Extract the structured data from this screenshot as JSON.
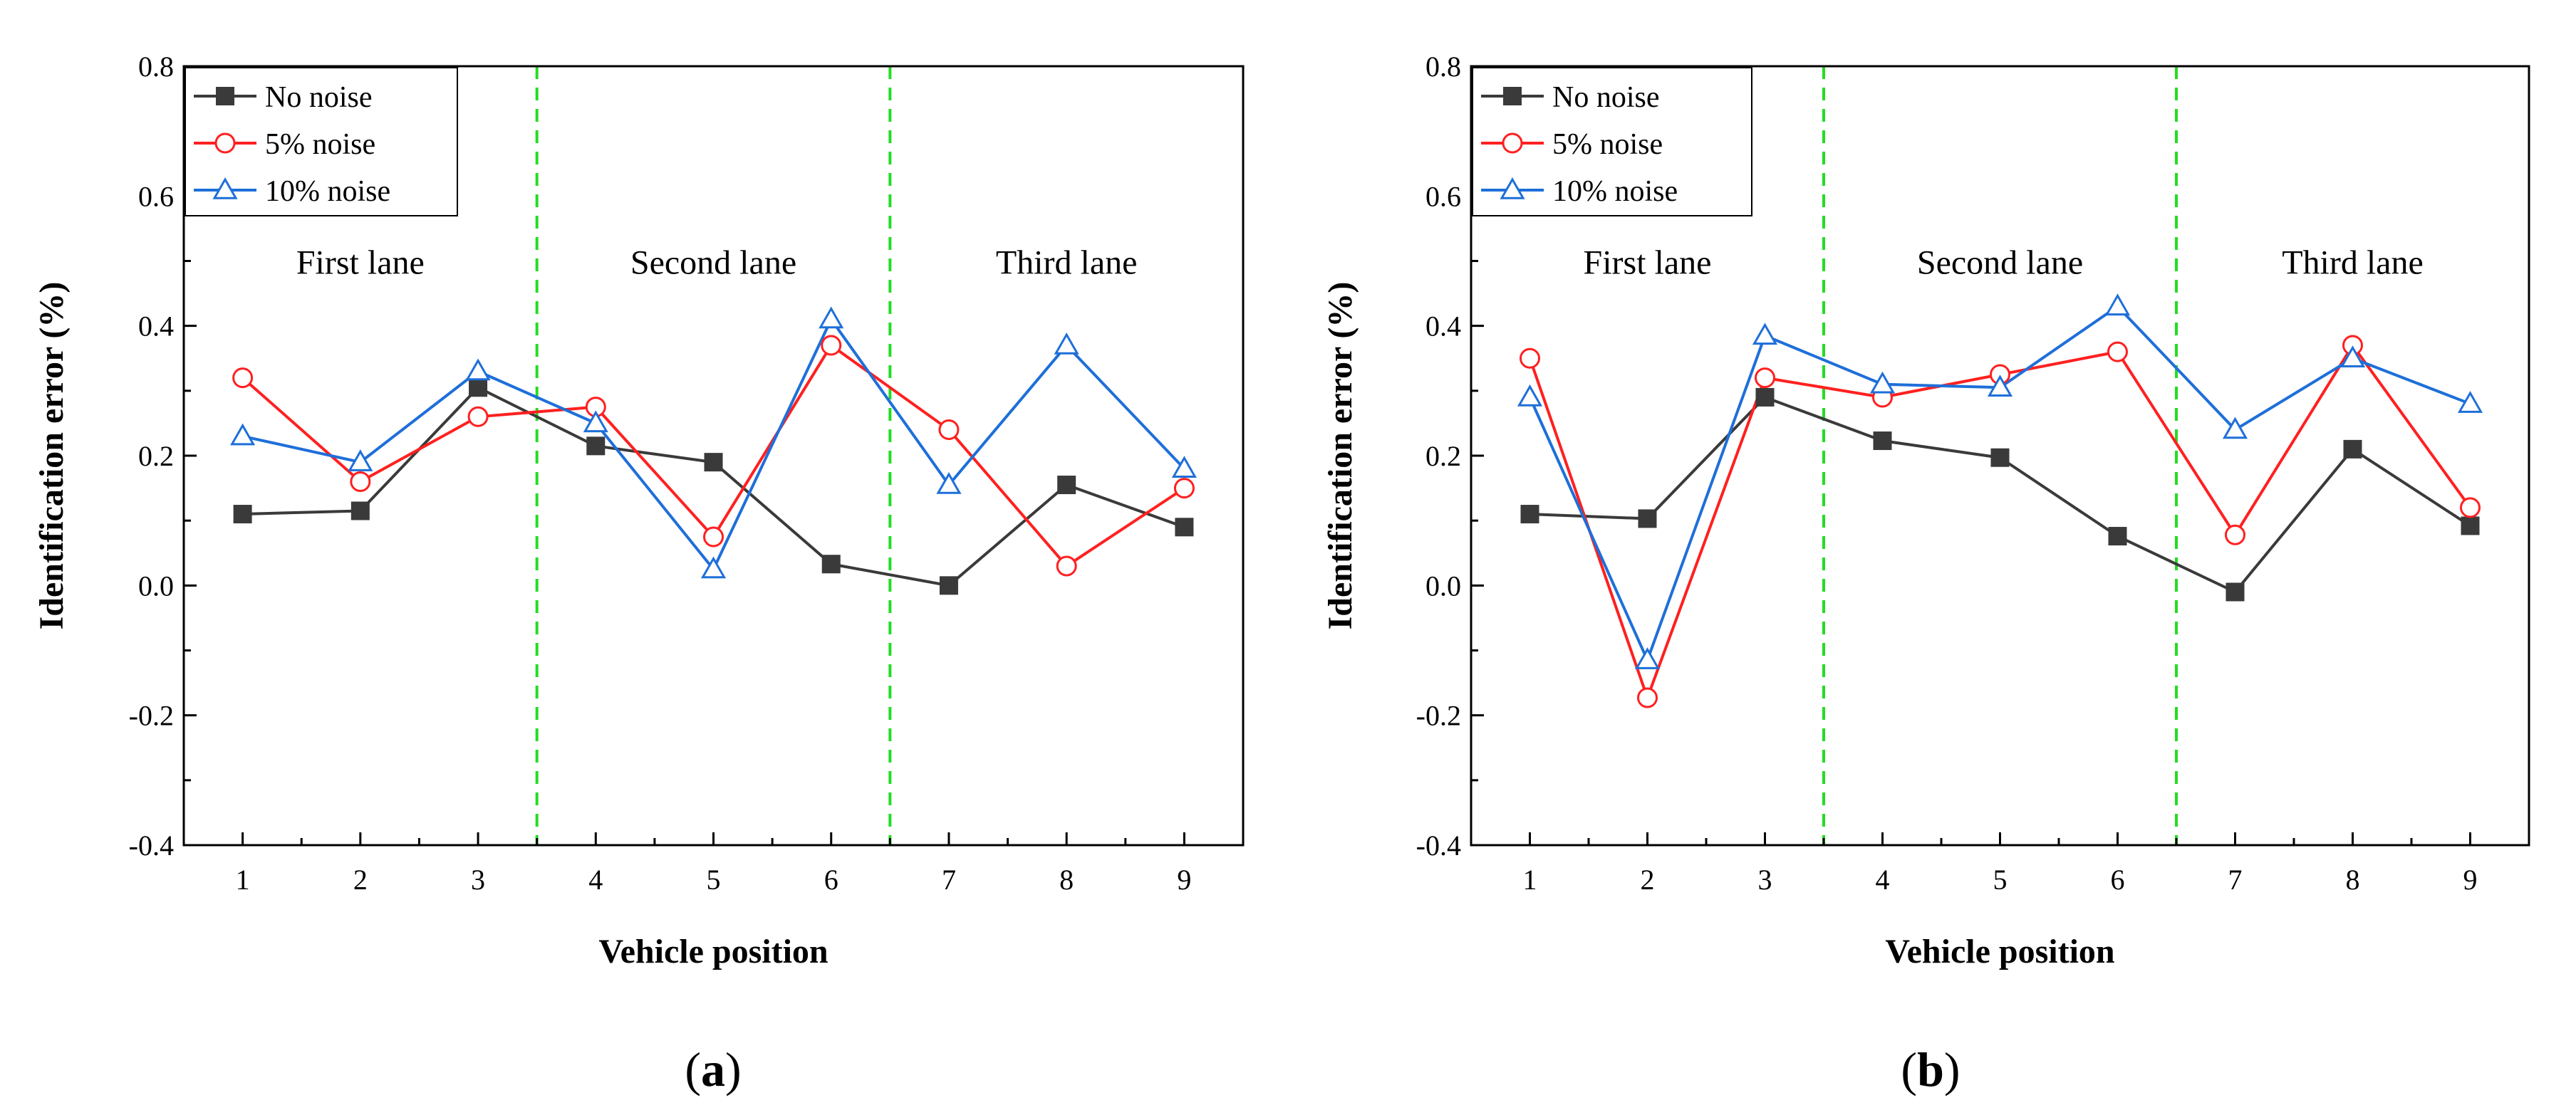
{
  "chart_data": [
    {
      "type": "line",
      "panel_label": "a",
      "xlabel": "Vehicle position",
      "ylabel": "Identification error (%)",
      "x": [
        1,
        2,
        3,
        4,
        5,
        6,
        7,
        8,
        9
      ],
      "xlim": [
        0.5,
        9.5
      ],
      "ylim": [
        -0.4,
        0.8
      ],
      "yticks": [
        "-0.4",
        "-0.2",
        "0.0",
        "0.2",
        "0.4",
        "0.6",
        "0.8"
      ],
      "legend_position": "top-left",
      "series": [
        {
          "name": "No noise",
          "marker": "filled-square",
          "color": "#3a3a3a",
          "values": [
            0.11,
            0.115,
            0.305,
            0.215,
            0.19,
            0.033,
            0.0,
            0.155,
            0.09
          ]
        },
        {
          "name": "5% noise",
          "marker": "open-circle",
          "color": "#ff2020",
          "values": [
            0.32,
            0.16,
            0.26,
            0.275,
            0.075,
            0.37,
            0.24,
            0.03,
            0.15
          ]
        },
        {
          "name": "10% noise",
          "marker": "open-triangle",
          "color": "#1e6fd9",
          "values": [
            0.23,
            0.19,
            0.33,
            0.25,
            0.025,
            0.41,
            0.155,
            0.37,
            0.18
          ]
        }
      ],
      "dividers": [
        3.5,
        6.5
      ],
      "divider_color": "#22dd22",
      "annotations": [
        {
          "text": "First lane",
          "x": 2,
          "y": 0.48
        },
        {
          "text": "Second lane",
          "x": 5,
          "y": 0.48
        },
        {
          "text": "Third lane",
          "x": 8,
          "y": 0.48
        }
      ]
    },
    {
      "type": "line",
      "panel_label": "b",
      "xlabel": "Vehicle position",
      "ylabel": "Identification error (%)",
      "x": [
        1,
        2,
        3,
        4,
        5,
        6,
        7,
        8,
        9
      ],
      "xlim": [
        0.5,
        9.5
      ],
      "ylim": [
        -0.4,
        0.8
      ],
      "yticks": [
        "-0.4",
        "-0.2",
        "0.0",
        "0.2",
        "0.4",
        "0.6",
        "0.8"
      ],
      "legend_position": "top-left",
      "series": [
        {
          "name": "No noise",
          "marker": "filled-square",
          "color": "#3a3a3a",
          "values": [
            0.11,
            0.103,
            0.29,
            0.223,
            0.197,
            0.076,
            -0.01,
            0.21,
            0.092
          ]
        },
        {
          "name": "5% noise",
          "marker": "open-circle",
          "color": "#ff2020",
          "values": [
            0.35,
            -0.173,
            0.32,
            0.29,
            0.325,
            0.36,
            0.078,
            0.37,
            0.12
          ]
        },
        {
          "name": "10% noise",
          "marker": "open-triangle",
          "color": "#1e6fd9",
          "values": [
            0.29,
            -0.115,
            0.385,
            0.31,
            0.305,
            0.43,
            0.24,
            0.35,
            0.28
          ]
        }
      ],
      "dividers": [
        3.5,
        6.5
      ],
      "divider_color": "#22dd22",
      "annotations": [
        {
          "text": "First lane",
          "x": 2,
          "y": 0.48
        },
        {
          "text": "Second lane",
          "x": 5,
          "y": 0.48
        },
        {
          "text": "Third lane",
          "x": 8,
          "y": 0.48
        }
      ]
    }
  ]
}
